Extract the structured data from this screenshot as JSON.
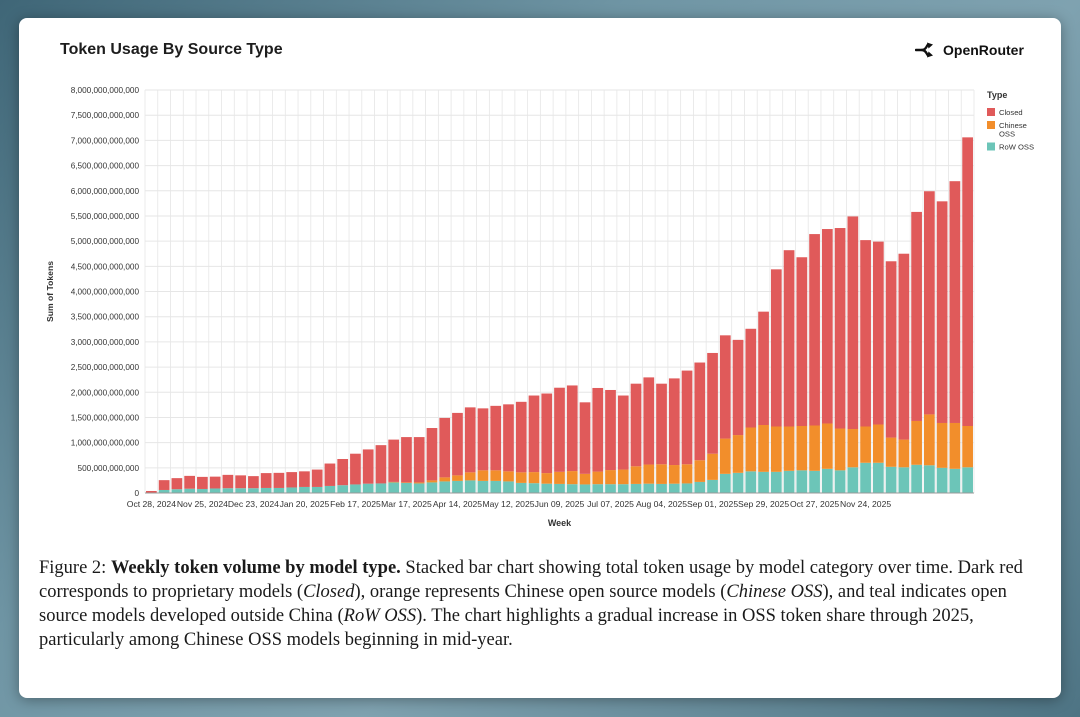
{
  "header": {
    "title": "Token Usage By Source Type",
    "brand": "OpenRouter"
  },
  "caption": {
    "label": "Figure 2:",
    "bold": "Weekly token volume by model type.",
    "p1": " Stacked bar chart showing total token usage by model category over time. Dark red corresponds to proprietary models (",
    "i1": "Closed",
    "p2": "), orange represents Chinese open source models (",
    "i2": "Chinese OSS",
    "p3": "), and teal indicates open source models developed outside China (",
    "i3": "RoW OSS",
    "p4": "). The chart highlights a gradual increase in OSS token share through 2025, particularly among Chinese OSS models beginning in mid-year."
  },
  "colors": {
    "closed": "#e05a5a",
    "chinese": "#f28e2b",
    "row": "#6cc5b8",
    "grid": "#e6e6e6"
  },
  "chart_data": {
    "type": "bar",
    "stacked": true,
    "xlabel": "Week",
    "ylabel": "Sum of Tokens",
    "ylim": [
      0,
      8000000000000
    ],
    "y_ticks": [
      "0",
      "500,000,000,000",
      "1,000,000,000,000",
      "1,500,000,000,000",
      "2,000,000,000,000",
      "2,500,000,000,000",
      "3,000,000,000,000",
      "3,500,000,000,000",
      "4,000,000,000,000",
      "4,500,000,000,000",
      "5,000,000,000,000",
      "5,500,000,000,000",
      "6,000,000,000,000",
      "6,500,000,000,000",
      "7,000,000,000,000",
      "7,500,000,000,000",
      "8,000,000,000,000"
    ],
    "x_tick_labels": [
      "Oct 28, 2024",
      "Nov 25, 2024",
      "Dec 23, 2024",
      "Jan 20, 2025",
      "Feb 17, 2025",
      "Mar 17, 2025",
      "Apr 14, 2025",
      "May 12, 2025",
      "Jun 09, 2025",
      "Jul 07, 2025",
      "Aug 04, 2025",
      "Sep 01, 2025",
      "Sep 29, 2025",
      "Oct 27, 2025",
      "Nov 24, 2025"
    ],
    "legend": {
      "title": "Type",
      "position": "top-right"
    },
    "grid": true,
    "series": [
      {
        "name": "Closed",
        "values": [
          30,
          195,
          220,
          255,
          240,
          235,
          265,
          255,
          240,
          295,
          300,
          305,
          310,
          345,
          445,
          520,
          610,
          680,
          760,
          840,
          900,
          900,
          1040,
          1180,
          1240,
          1290,
          1230,
          1280,
          1330,
          1400,
          1520,
          1580,
          1670,
          1700,
          1420,
          1660,
          1590,
          1470,
          1640,
          1730,
          1600,
          1720,
          1860,
          1940,
          2000,
          2050,
          1890,
          1960,
          2250,
          3120,
          3500,
          3350,
          3800,
          3860,
          3980,
          4220,
          3700,
          3630,
          3500,
          3690,
          4150,
          4430,
          4400,
          4800,
          5730
        ],
        "color": "#e05a5a"
      },
      {
        "name": "Chinese OSS",
        "values": [
          0,
          0,
          0,
          0,
          0,
          0,
          0,
          0,
          0,
          0,
          0,
          0,
          0,
          0,
          0,
          0,
          0,
          0,
          0,
          10,
          10,
          20,
          40,
          80,
          110,
          160,
          210,
          210,
          200,
          210,
          220,
          210,
          240,
          260,
          210,
          250,
          280,
          290,
          350,
          380,
          390,
          370,
          380,
          430,
          520,
          700,
          750,
          870,
          930,
          900,
          880,
          880,
          900,
          900,
          830,
          760,
          720,
          760,
          580,
          550,
          870,
          1010,
          890,
          910,
          820
        ],
        "color": "#f28e2b"
      },
      {
        "name": "RoW OSS",
        "values": [
          10,
          60,
          75,
          85,
          80,
          90,
          95,
          95,
          95,
          100,
          100,
          110,
          120,
          120,
          140,
          155,
          170,
          185,
          190,
          210,
          200,
          190,
          210,
          230,
          240,
          250,
          240,
          240,
          230,
          200,
          195,
          185,
          180,
          175,
          170,
          175,
          175,
          175,
          180,
          185,
          180,
          185,
          190,
          220,
          260,
          380,
          400,
          430,
          420,
          420,
          440,
          450,
          440,
          480,
          450,
          510,
          600,
          600,
          520,
          510,
          560,
          550,
          500,
          480,
          510
        ],
        "color": "#6cc5b8"
      }
    ],
    "units_note_scale": "values in billions of tokens"
  }
}
